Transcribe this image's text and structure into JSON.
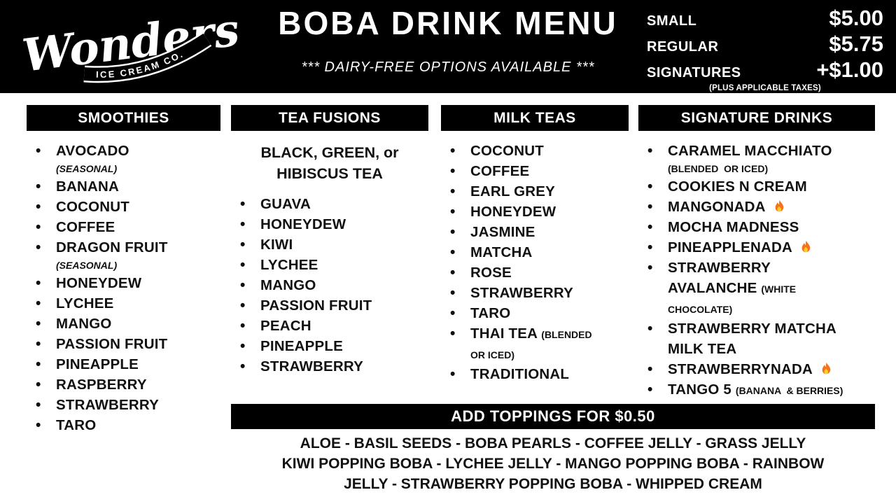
{
  "brand": {
    "name": "Wonders",
    "tagline": "ICE CREAM CO."
  },
  "header": {
    "title": "BOBA DRINK MENU",
    "subtitle": "*** DAIRY-FREE OPTIONS AVAILABLE ***",
    "prices": [
      {
        "label": "SMALL",
        "value": "$5.00"
      },
      {
        "label": "REGULAR",
        "value": "$5.75"
      },
      {
        "label": "SIGNATURES",
        "value": "+$1.00"
      }
    ],
    "tax_note": "(PLUS APPLICABLE TAXES)"
  },
  "columns": [
    {
      "title": "SMOOTHIES",
      "items": [
        {
          "label": "AVOCADO",
          "note": "(SEASONAL)",
          "note_position": "block",
          "note_italic": true
        },
        {
          "label": "BANANA"
        },
        {
          "label": "COCONUT"
        },
        {
          "label": "COFFEE"
        },
        {
          "label": "DRAGON FRUIT",
          "note": "(SEASONAL)",
          "note_position": "block",
          "note_italic": true
        },
        {
          "label": "HONEYDEW"
        },
        {
          "label": "LYCHEE"
        },
        {
          "label": "MANGO"
        },
        {
          "label": "PASSION FRUIT"
        },
        {
          "label": "PINEAPPLE"
        },
        {
          "label": "RASPBERRY"
        },
        {
          "label": "STRAWBERRY"
        },
        {
          "label": "TARO"
        }
      ]
    },
    {
      "title": "TEA FUSIONS",
      "intro": "BLACK, GREEN, or\nHIBISCUS TEA",
      "items": [
        {
          "label": "GUAVA"
        },
        {
          "label": "HONEYDEW"
        },
        {
          "label": "KIWI"
        },
        {
          "label": "LYCHEE"
        },
        {
          "label": "MANGO"
        },
        {
          "label": "PASSION FRUIT"
        },
        {
          "label": "PEACH"
        },
        {
          "label": "PINEAPPLE"
        },
        {
          "label": "STRAWBERRY"
        }
      ]
    },
    {
      "title": "MILK TEAS",
      "items": [
        {
          "label": "COCONUT"
        },
        {
          "label": "COFFEE"
        },
        {
          "label": "EARL GREY"
        },
        {
          "label": "HONEYDEW"
        },
        {
          "label": "JASMINE"
        },
        {
          "label": "MATCHA"
        },
        {
          "label": "ROSE"
        },
        {
          "label": "STRAWBERRY"
        },
        {
          "label": "TARO"
        },
        {
          "label": "THAI TEA",
          "note": "(BLENDED\nOR ICED)",
          "note_position": "inline"
        },
        {
          "label": "TRADITIONAL"
        }
      ]
    },
    {
      "title": "SIGNATURE DRINKS",
      "items": [
        {
          "label": "CARAMEL MACCHIATO",
          "note": "(BLENDED  OR ICED)",
          "note_position": "block"
        },
        {
          "label": "COOKIES N CREAM"
        },
        {
          "label": "MANGONADA",
          "hot": true
        },
        {
          "label": "MOCHA MADNESS"
        },
        {
          "label": "PINEAPPLENADA",
          "hot": true
        },
        {
          "label": "STRAWBERRY\nAVALANCHE",
          "note": "(WHITE\nCHOCOLATE)",
          "note_position": "inline"
        },
        {
          "label": "STRAWBERRY MATCHA\nMILK TEA"
        },
        {
          "label": "STRAWBERRYNADA",
          "hot": true
        },
        {
          "label": "TANGO 5",
          "note": "(BANANA  & BERRIES)",
          "note_position": "inline"
        }
      ]
    }
  ],
  "toppings": {
    "banner": "ADD TOPPINGS FOR $0.50",
    "items": [
      "ALOE",
      "BASIL SEEDS",
      "BOBA PEARLS",
      "COFFEE JELLY",
      "GRASS JELLY",
      "KIWI POPPING BOBA",
      "LYCHEE JELLY",
      "MANGO POPPING BOBA",
      "RAINBOW JELLY",
      "STRAWBERRY POPPING BOBA",
      "WHIPPED CREAM"
    ],
    "display": "ALOE - BASIL SEEDS - BOBA PEARLS - COFFEE JELLY - GRASS JELLY\nKIWI POPPING BOBA - LYCHEE JELLY - MANGO POPPING BOBA - RAINBOW\nJELLY - STRAWBERRY POPPING BOBA - WHIPPED CREAM"
  },
  "icons": {
    "flame": "flame-icon"
  },
  "colors": {
    "background": "#ffffff",
    "panel": "#000000",
    "text_on_panel": "#ffffff",
    "text": "#111111",
    "flame_outer": "#f4731c",
    "flame_inner": "#fdd023"
  }
}
